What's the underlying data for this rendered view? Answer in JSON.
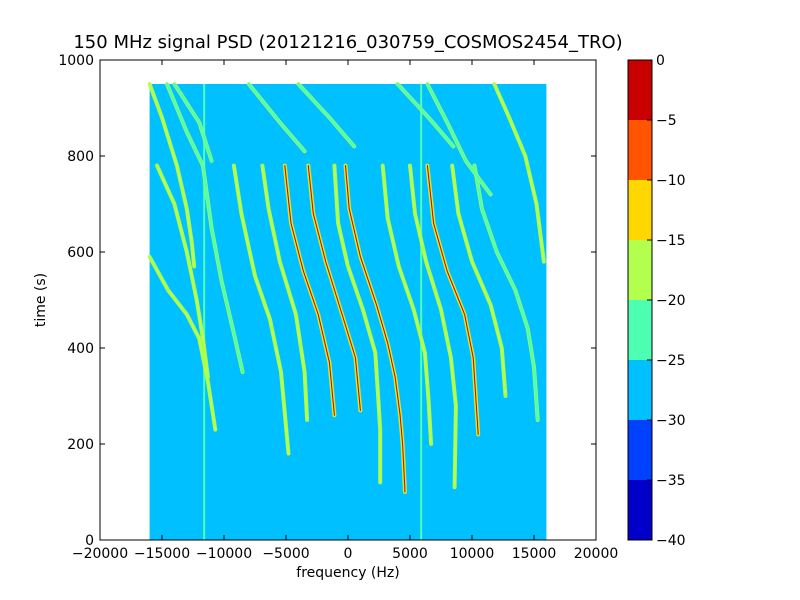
{
  "chart_data": {
    "type": "heatmap",
    "title": "150 MHz signal PSD (20121216_030759_COSMOS2454_TRO)",
    "xlabel": "frequency (Hz)",
    "ylabel": "time (s)",
    "xlim": [
      -20000,
      20000
    ],
    "ylim": [
      0,
      1000
    ],
    "xticks": [
      -20000,
      -15000,
      -10000,
      -5000,
      0,
      5000,
      10000,
      15000,
      20000
    ],
    "xtick_labels": [
      "−20000",
      "−15000",
      "−10000",
      "−5000",
      "0",
      "5000",
      "10000",
      "15000",
      "20000"
    ],
    "yticks": [
      0,
      200,
      400,
      600,
      800,
      1000
    ],
    "ytick_labels": [
      "0",
      "200",
      "400",
      "600",
      "800",
      "1000"
    ],
    "data_extent": {
      "x": [
        -16000,
        16000
      ],
      "y": [
        0,
        950
      ]
    },
    "background_level": -27.5,
    "colorbar": {
      "range": [
        -40,
        0
      ],
      "ticks": [
        0,
        -5,
        -10,
        -15,
        -20,
        -25,
        -30,
        -35,
        -40
      ],
      "tick_labels": [
        "0",
        "−5",
        "−10",
        "−15",
        "−20",
        "−25",
        "−30",
        "−35",
        "−40"
      ],
      "bands": [
        {
          "from": -40,
          "to": -35,
          "color": "#0000c8"
        },
        {
          "from": -35,
          "to": -30,
          "color": "#0040ff"
        },
        {
          "from": -30,
          "to": -25,
          "color": "#00c0ff"
        },
        {
          "from": -25,
          "to": -20,
          "color": "#4dffb2"
        },
        {
          "from": -20,
          "to": -15,
          "color": "#b2ff4d"
        },
        {
          "from": -15,
          "to": -10,
          "color": "#ffd700"
        },
        {
          "from": -10,
          "to": -5,
          "color": "#ff5500"
        },
        {
          "from": -5,
          "to": 0,
          "color": "#c80000"
        }
      ]
    },
    "vertical_lines": [
      {
        "x": -11600,
        "y": [
          0,
          950
        ],
        "color": "#4dffb2"
      },
      {
        "x": 5900,
        "y": [
          0,
          950
        ],
        "color": "#4dffb2"
      }
    ],
    "traces": [
      {
        "points": [
          [
            -16000,
            950
          ],
          [
            -15000,
            880
          ],
          [
            -13800,
            780
          ],
          [
            -13000,
            690
          ],
          [
            -12600,
            620
          ],
          [
            -12400,
            570
          ]
        ],
        "color": "#b2ff4d"
      },
      {
        "points": [
          [
            -16000,
            590
          ],
          [
            -14500,
            520
          ],
          [
            -13000,
            470
          ],
          [
            -12000,
            420
          ],
          [
            -11300,
            330
          ],
          [
            -10700,
            230
          ]
        ],
        "color": "#b2ff4d"
      },
      {
        "points": [
          [
            -15400,
            780
          ],
          [
            -14000,
            700
          ],
          [
            -13000,
            600
          ],
          [
            -12200,
            500
          ],
          [
            -11700,
            420
          ],
          [
            -11300,
            340
          ]
        ],
        "color": "#b2ff4d"
      },
      {
        "points": [
          [
            -14600,
            950
          ],
          [
            -13000,
            850
          ],
          [
            -11700,
            780
          ],
          [
            -11000,
            650
          ],
          [
            -10200,
            540
          ],
          [
            -9200,
            430
          ],
          [
            -8500,
            350
          ]
        ],
        "color": "#4dffb2"
      },
      {
        "points": [
          [
            -9200,
            780
          ],
          [
            -8600,
            680
          ],
          [
            -7500,
            550
          ],
          [
            -6300,
            460
          ],
          [
            -5400,
            350
          ],
          [
            -4800,
            180
          ]
        ],
        "color": "#b2ff4d"
      },
      {
        "points": [
          [
            -6900,
            780
          ],
          [
            -6400,
            690
          ],
          [
            -5500,
            580
          ],
          [
            -4200,
            470
          ],
          [
            -3500,
            350
          ],
          [
            -3300,
            250
          ]
        ],
        "color": "#b2ff4d"
      },
      {
        "points": [
          [
            -5100,
            780
          ],
          [
            -4600,
            660
          ],
          [
            -3600,
            560
          ],
          [
            -2400,
            470
          ],
          [
            -1500,
            370
          ],
          [
            -1100,
            260
          ]
        ],
        "color": "#ffd700"
      },
      {
        "points": [
          [
            -3200,
            780
          ],
          [
            -2800,
            680
          ],
          [
            -1800,
            580
          ],
          [
            -600,
            480
          ],
          [
            600,
            380
          ],
          [
            1000,
            270
          ]
        ],
        "color": "#ffd700"
      },
      {
        "points": [
          [
            -1100,
            780
          ],
          [
            -800,
            660
          ],
          [
            0,
            570
          ],
          [
            1200,
            480
          ],
          [
            2200,
            390
          ],
          [
            2400,
            310
          ],
          [
            2600,
            230
          ],
          [
            2600,
            120
          ]
        ],
        "color": "#b2ff4d"
      },
      {
        "points": [
          [
            -200,
            780
          ],
          [
            100,
            690
          ],
          [
            1000,
            590
          ],
          [
            2300,
            490
          ],
          [
            3200,
            410
          ],
          [
            3800,
            340
          ],
          [
            4200,
            260
          ],
          [
            4400,
            200
          ],
          [
            4600,
            100
          ]
        ],
        "color": "#ffd700"
      },
      {
        "points": [
          [
            2800,
            780
          ],
          [
            3200,
            670
          ],
          [
            4100,
            570
          ],
          [
            5300,
            480
          ],
          [
            6200,
            390
          ],
          [
            6500,
            290
          ],
          [
            6700,
            200
          ]
        ],
        "color": "#b2ff4d"
      },
      {
        "points": [
          [
            5000,
            780
          ],
          [
            5400,
            680
          ],
          [
            6300,
            580
          ],
          [
            7500,
            480
          ],
          [
            8300,
            380
          ],
          [
            8700,
            280
          ],
          [
            8600,
            110
          ]
        ],
        "color": "#b2ff4d"
      },
      {
        "points": [
          [
            6400,
            780
          ],
          [
            6900,
            660
          ],
          [
            8000,
            560
          ],
          [
            9400,
            470
          ],
          [
            10100,
            380
          ],
          [
            10500,
            220
          ]
        ],
        "color": "#ffd700"
      },
      {
        "points": [
          [
            8400,
            780
          ],
          [
            8900,
            680
          ],
          [
            10000,
            580
          ],
          [
            11500,
            490
          ],
          [
            12400,
            400
          ],
          [
            12700,
            300
          ]
        ],
        "color": "#b2ff4d"
      },
      {
        "points": [
          [
            10200,
            780
          ],
          [
            10800,
            690
          ],
          [
            12000,
            600
          ],
          [
            13500,
            520
          ],
          [
            14500,
            440
          ],
          [
            15000,
            360
          ],
          [
            15300,
            250
          ]
        ],
        "color": "#4dffb2"
      },
      {
        "points": [
          [
            6400,
            950
          ],
          [
            8000,
            870
          ],
          [
            9500,
            790
          ],
          [
            11500,
            720
          ]
        ],
        "color": "#4dffb2"
      },
      {
        "points": [
          [
            11800,
            950
          ],
          [
            13000,
            880
          ],
          [
            14300,
            800
          ],
          [
            15200,
            700
          ],
          [
            15800,
            580
          ]
        ],
        "color": "#b2ff4d"
      },
      {
        "points": [
          [
            -14000,
            950
          ],
          [
            -12000,
            870
          ],
          [
            -11000,
            790
          ]
        ],
        "color": "#4dffb2"
      },
      {
        "points": [
          [
            -8000,
            950
          ],
          [
            -5500,
            870
          ],
          [
            -3500,
            810
          ]
        ],
        "color": "#4dffb2"
      },
      {
        "points": [
          [
            -4000,
            950
          ],
          [
            -1500,
            880
          ],
          [
            500,
            820
          ]
        ],
        "color": "#4dffb2"
      },
      {
        "points": [
          [
            4000,
            950
          ],
          [
            6500,
            880
          ],
          [
            8500,
            820
          ]
        ],
        "color": "#4dffb2"
      }
    ]
  }
}
